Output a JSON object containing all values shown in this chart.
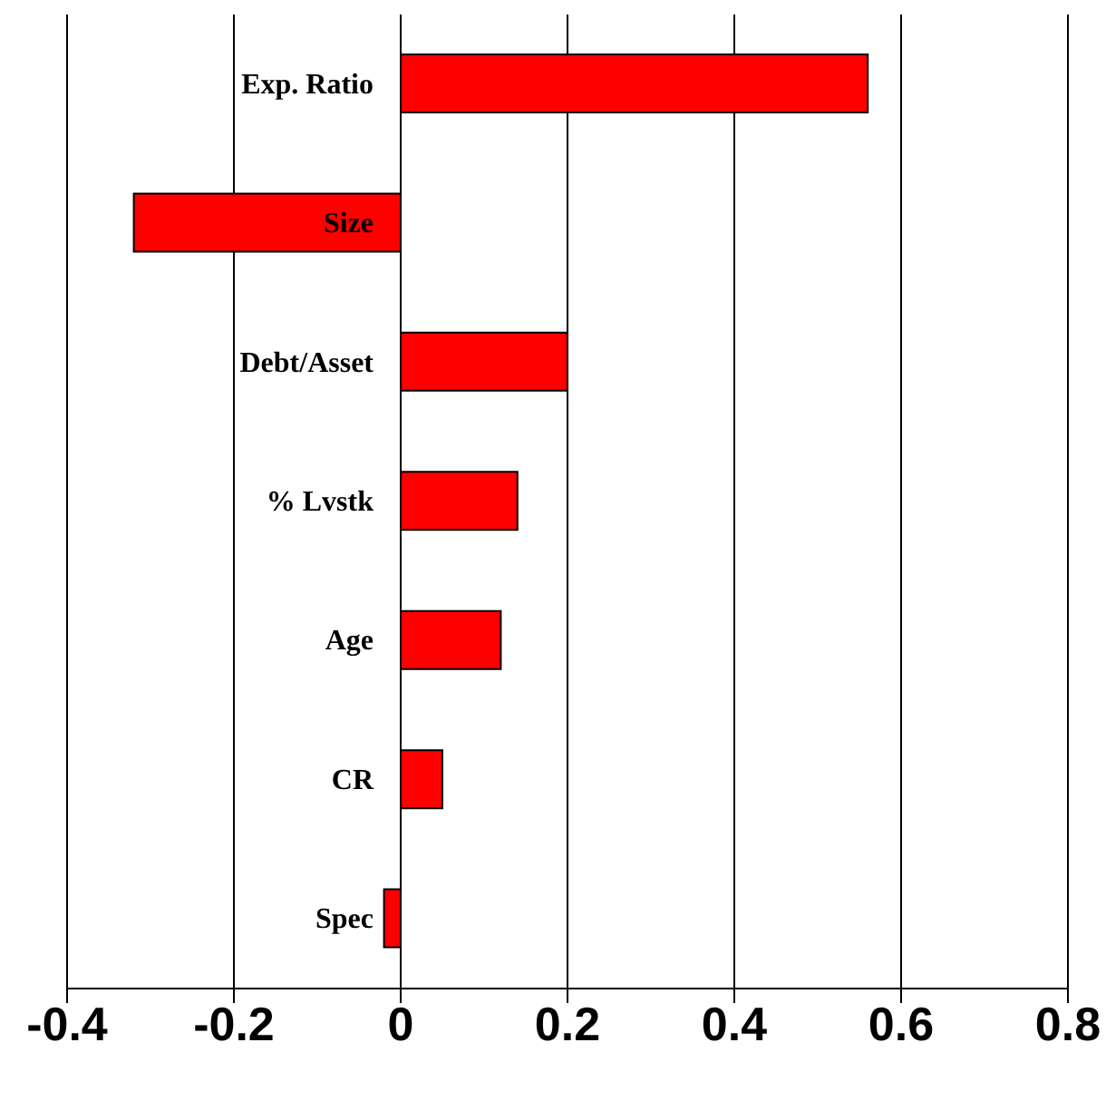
{
  "chart_data": {
    "type": "bar",
    "orientation": "horizontal",
    "categories": [
      "Exp. Ratio",
      "Size",
      "Debt/Asset",
      "% Lvstk",
      "Age",
      "CR",
      "Spec"
    ],
    "values": [
      0.56,
      -0.32,
      0.2,
      0.14,
      0.12,
      0.05,
      -0.02
    ],
    "color": "#ff0000",
    "xlim": [
      -0.4,
      0.8
    ],
    "xticks": [
      -0.4,
      -0.2,
      0,
      0.2,
      0.4,
      0.6,
      0.8
    ],
    "grid": "x"
  }
}
